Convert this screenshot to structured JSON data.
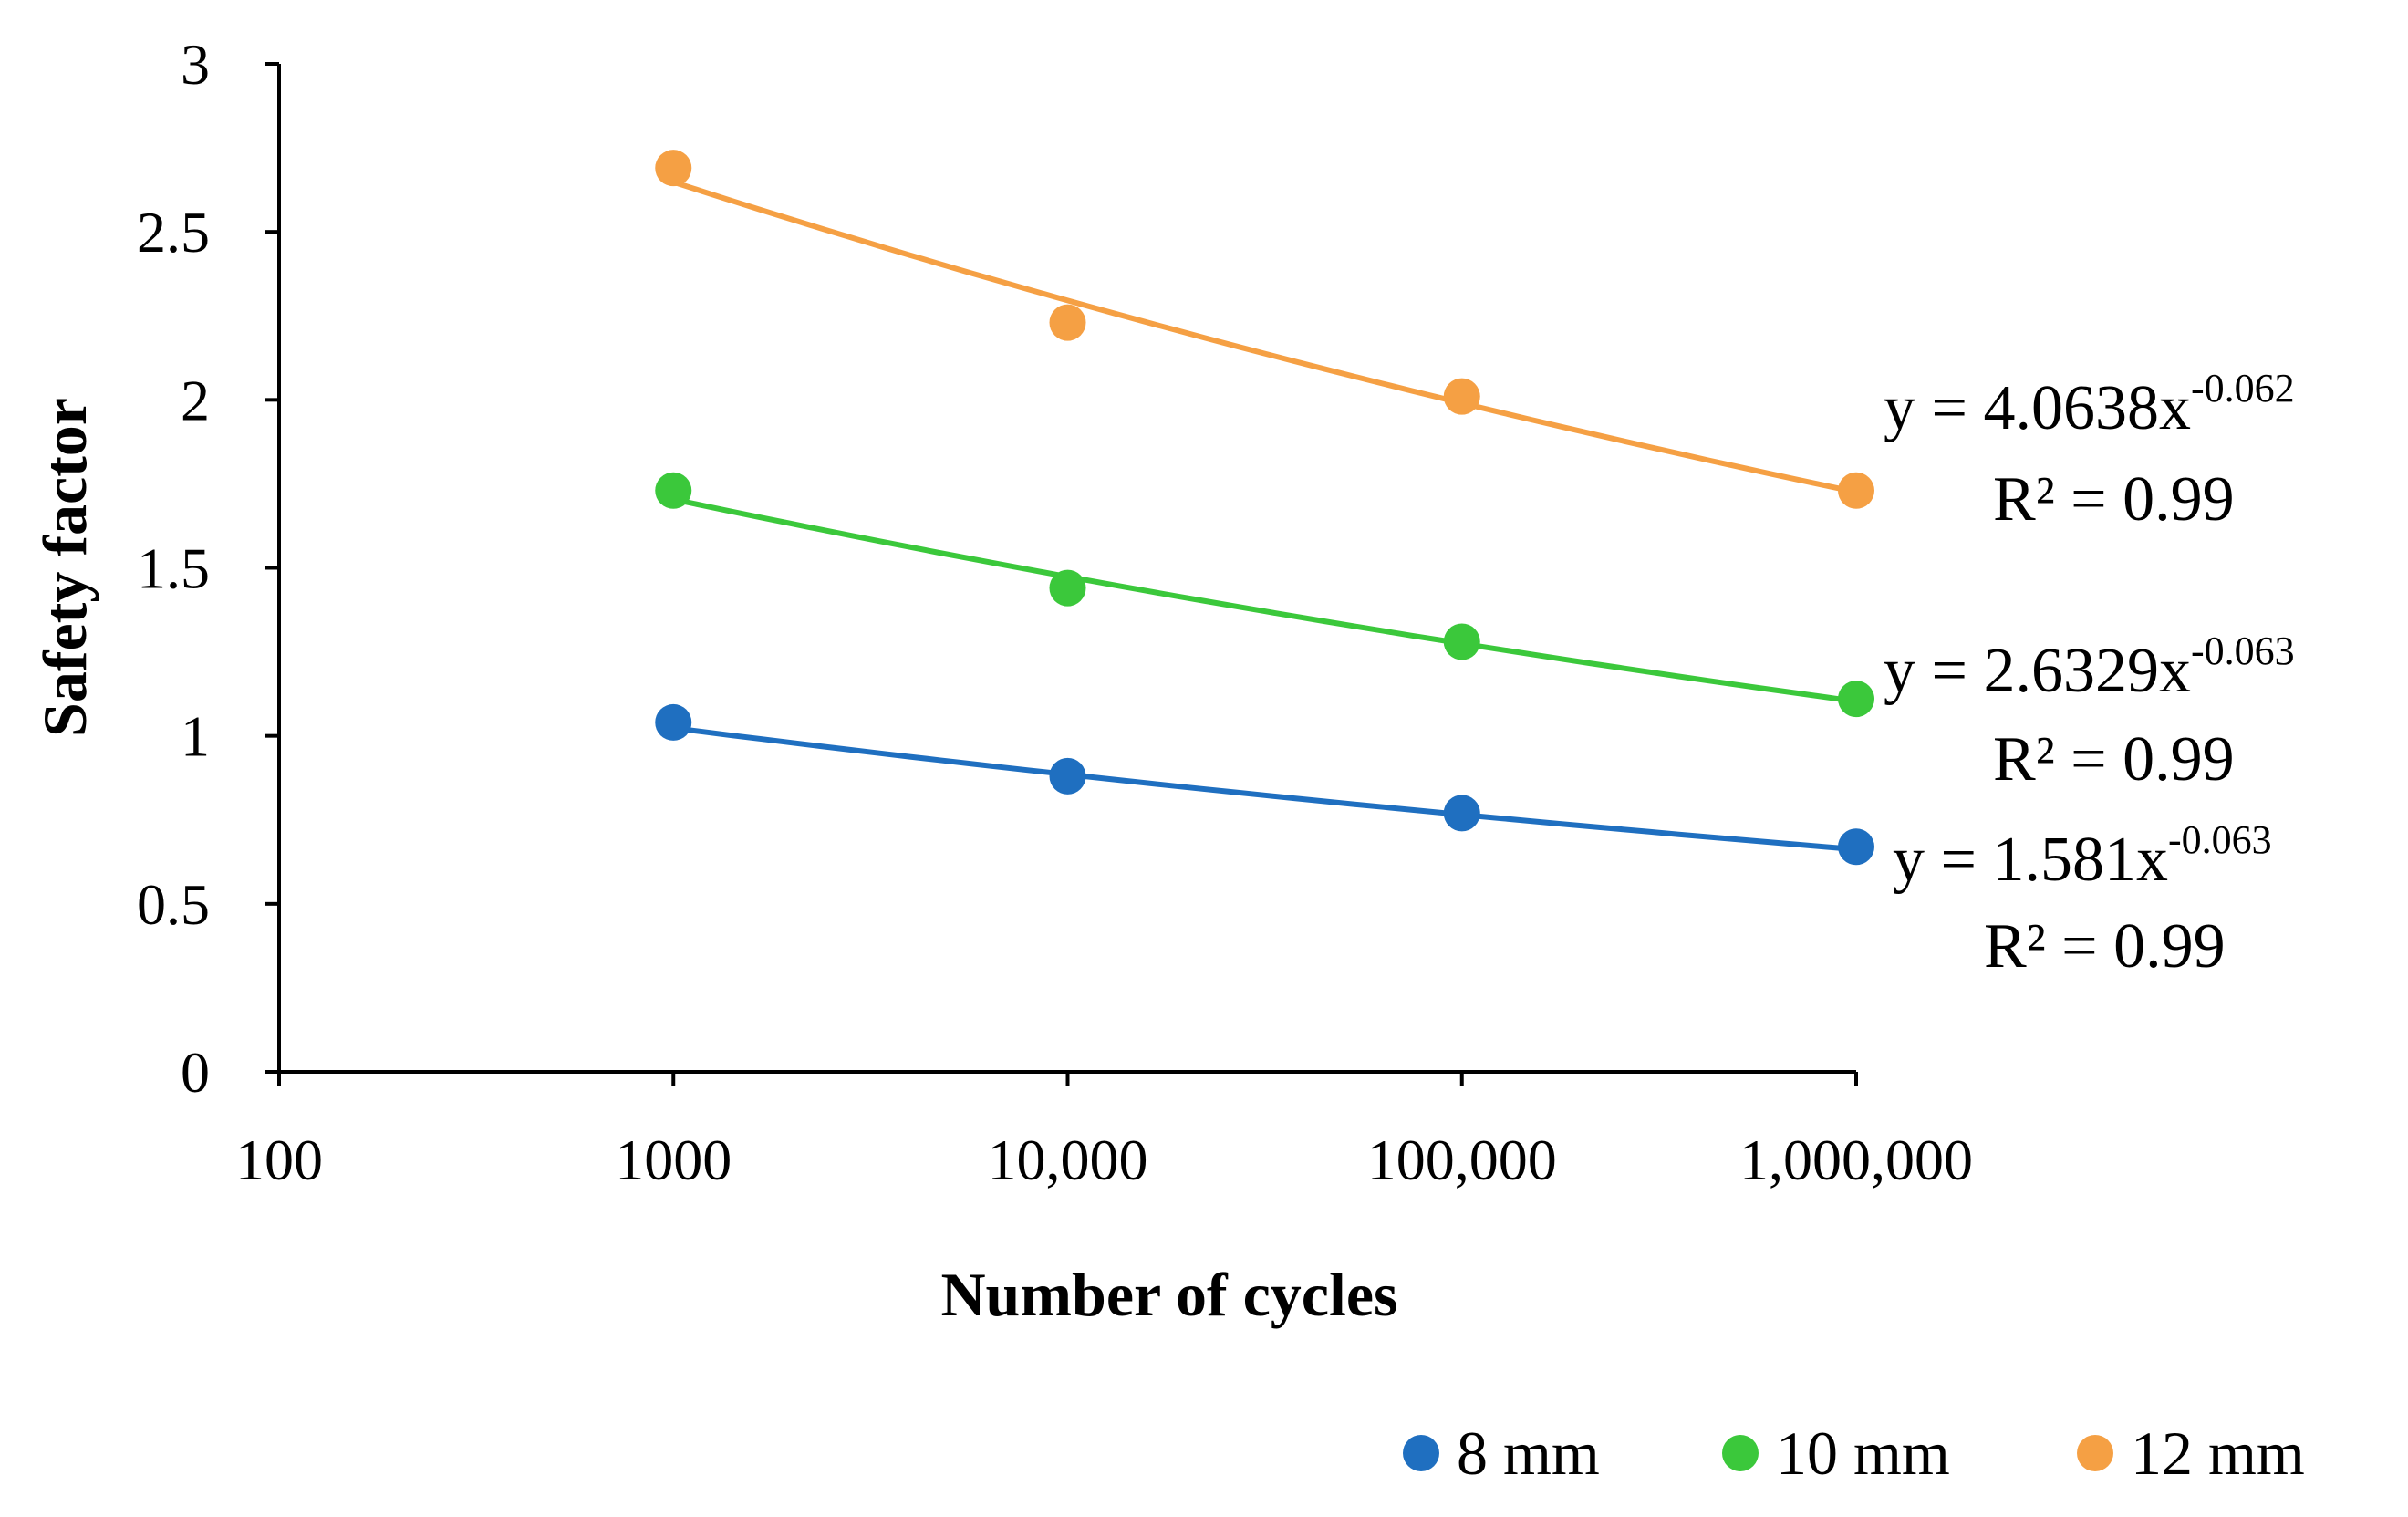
{
  "chart_data": {
    "type": "scatter",
    "title": "",
    "xlabel": "Number of cycles",
    "ylabel": "Safety factor",
    "xscale": "log",
    "xlim": [
      100,
      1000000
    ],
    "ylim": [
      0,
      3
    ],
    "grid": false,
    "legend_position": "bottom-right",
    "x_tick_values": [
      100,
      1000,
      10000,
      100000,
      1000000
    ],
    "x_tick_labels": [
      "100",
      "1000",
      "10,000",
      "100,000",
      "1,000,000"
    ],
    "y_tick_values": [
      0,
      0.5,
      1,
      1.5,
      2,
      2.5,
      3
    ],
    "y_tick_labels": [
      "0",
      "0.5",
      "1",
      "1.5",
      "2",
      "2.5",
      "3"
    ],
    "x": [
      1000,
      10000,
      100000,
      1000000
    ],
    "series": [
      {
        "name": "8 mm",
        "color": "#1f6fc0",
        "values": [
          1.04,
          0.88,
          0.77,
          0.67
        ],
        "trendline": {
          "a": 1.581,
          "b": -0.063
        },
        "equation_prefix": "y = 1.581x",
        "equation_exponent": "-0.063",
        "r2_text": "R² = 0.99"
      },
      {
        "name": "10 mm",
        "color": "#3bc83b",
        "values": [
          1.73,
          1.44,
          1.28,
          1.11
        ],
        "trendline": {
          "a": 2.6329,
          "b": -0.063
        },
        "equation_prefix": "y = 2.6329x",
        "equation_exponent": "-0.063",
        "r2_text": "R² = 0.99"
      },
      {
        "name": "12 mm",
        "color": "#f5a044",
        "values": [
          2.69,
          2.23,
          2.01,
          1.73
        ],
        "trendline": {
          "a": 4.0638,
          "b": -0.062
        },
        "equation_prefix": "y = 4.0638x",
        "equation_exponent": "-0.062",
        "r2_text": "R² = 0.99"
      }
    ]
  }
}
